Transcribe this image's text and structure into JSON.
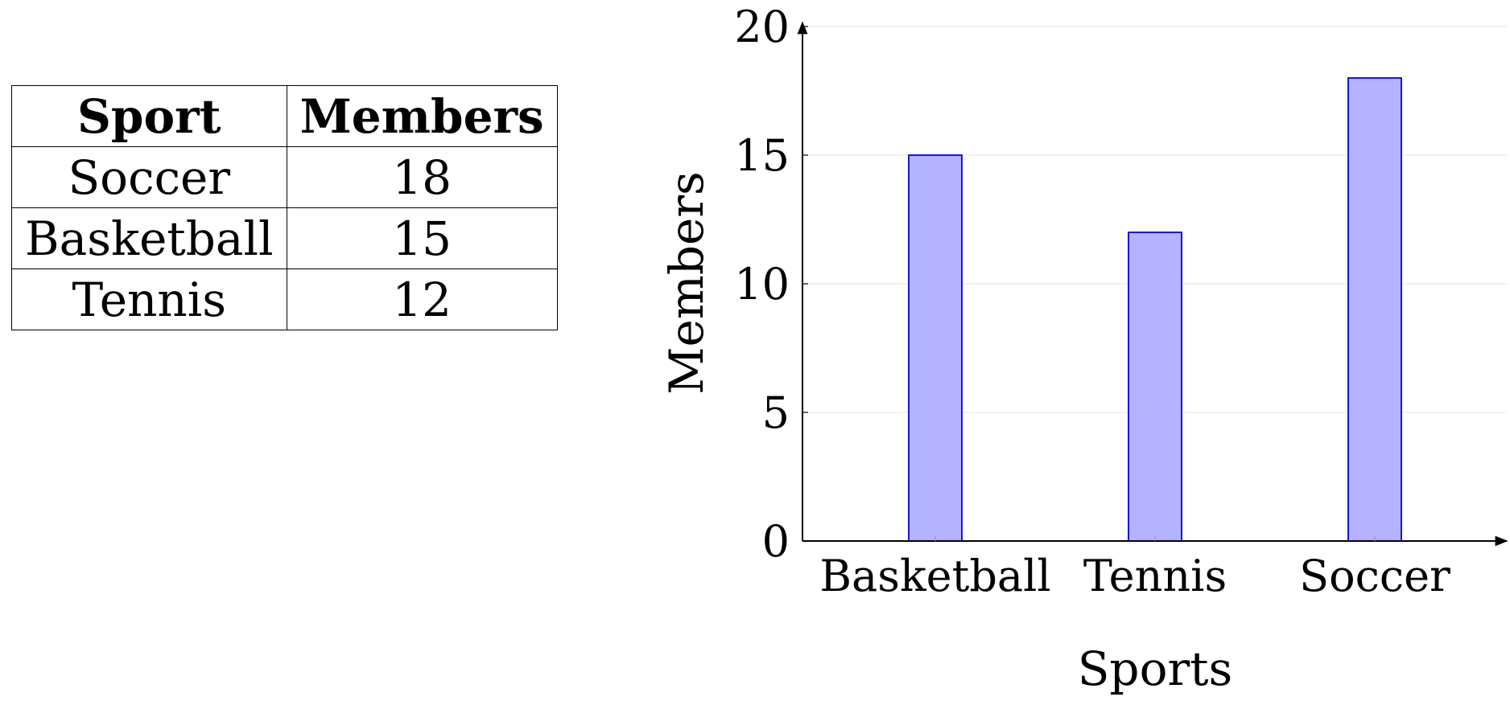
{
  "table": {
    "headers": [
      "Sport",
      "Members"
    ],
    "rows": [
      [
        "Soccer",
        "18"
      ],
      [
        "Basketball",
        "15"
      ],
      [
        "Tennis",
        "12"
      ]
    ]
  },
  "chart_data": {
    "type": "bar",
    "categories": [
      "Basketball",
      "Tennis",
      "Soccer"
    ],
    "values": [
      15,
      12,
      18
    ],
    "title": "",
    "xlabel": "Sports",
    "ylabel": "Members",
    "ylim": [
      0,
      20
    ],
    "yticks": [
      0,
      5,
      10,
      15,
      20
    ],
    "grid": "horizontal",
    "bar_fill": "#b3b3ff",
    "bar_stroke": "#0000e6"
  }
}
